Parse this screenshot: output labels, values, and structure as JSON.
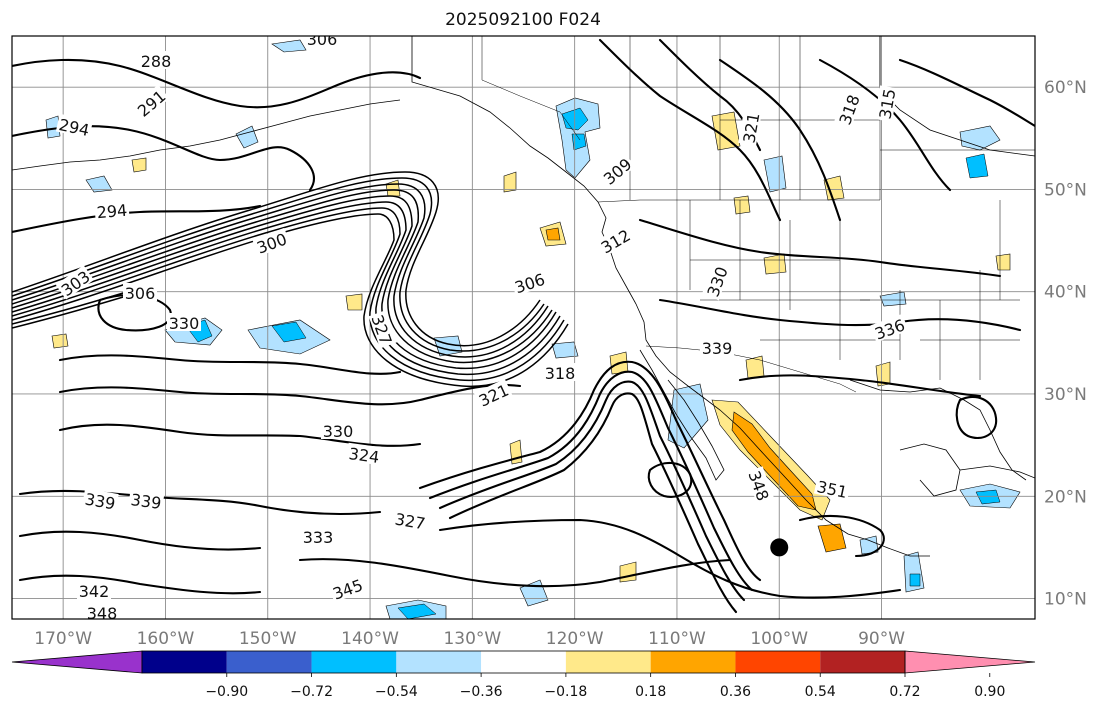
{
  "title": "2025092100 F024",
  "map": {
    "lon_range": [
      -175,
      -75
    ],
    "lat_range": [
      8,
      65
    ],
    "grid": true,
    "lon_ticks": [
      {
        "value": -170,
        "label": "170°W"
      },
      {
        "value": -160,
        "label": "160°W"
      },
      {
        "value": -150,
        "label": "150°W"
      },
      {
        "value": -140,
        "label": "140°W"
      },
      {
        "value": -130,
        "label": "130°W"
      },
      {
        "value": -120,
        "label": "120°W"
      },
      {
        "value": -110,
        "label": "110°W"
      },
      {
        "value": -100,
        "label": "100°W"
      },
      {
        "value": -90,
        "label": "90°W"
      }
    ],
    "lat_ticks": [
      {
        "value": 10,
        "label": "10°N"
      },
      {
        "value": 20,
        "label": "20°N"
      },
      {
        "value": 30,
        "label": "30°N"
      },
      {
        "value": 40,
        "label": "40°N"
      },
      {
        "value": 50,
        "label": "50°N"
      },
      {
        "value": 60,
        "label": "60°N"
      }
    ],
    "contour_labels": [
      "288",
      "291",
      "294",
      "294",
      "300",
      "303",
      "306",
      "306",
      "306",
      "309",
      "312",
      "315",
      "318",
      "321",
      "327",
      "330",
      "330",
      "330",
      "336",
      "339",
      "339",
      "339",
      "345",
      "348",
      "351",
      "324",
      "321",
      "318",
      "327",
      "333",
      "342",
      "348"
    ],
    "storm_marker": {
      "lon": -100,
      "lat": 15
    }
  },
  "colorbar": {
    "tick_labels": [
      "−0.90",
      "−0.72",
      "−0.54",
      "−0.36",
      "−0.18",
      "0.18",
      "0.36",
      "0.54",
      "0.72",
      "0.90"
    ],
    "colors": [
      "#9932cc",
      "#00008b",
      "#3a5fcd",
      "#00bfff",
      "#b3e2ff",
      "#ffffff",
      "#ffe98a",
      "#ffa500",
      "#ff4500",
      "#b22222",
      "#ff8fb0"
    ],
    "extend": "both"
  }
}
